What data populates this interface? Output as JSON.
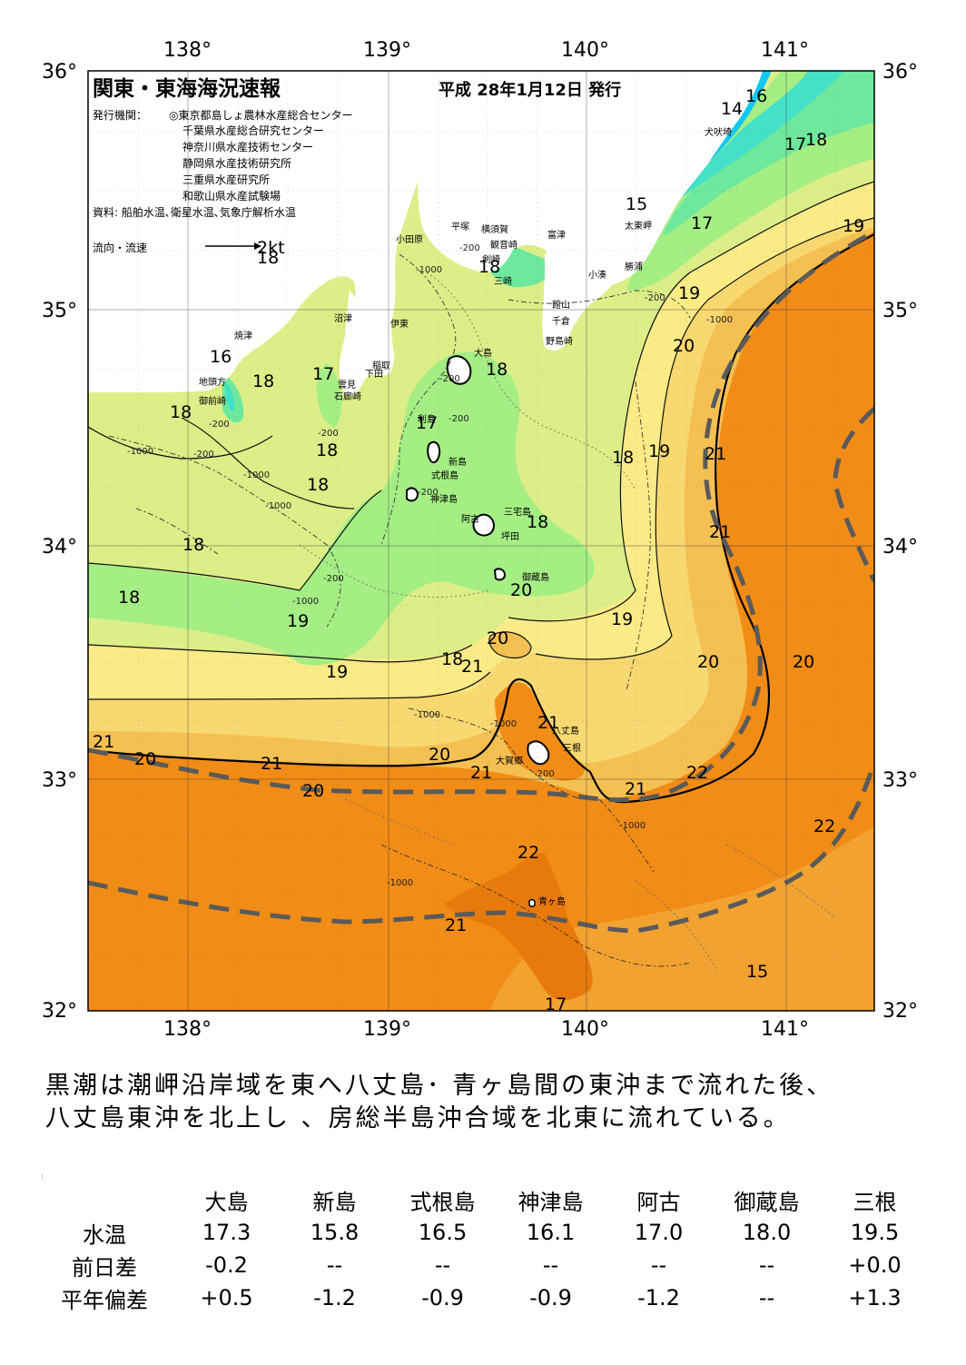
{
  "header": {
    "title": "関東・東海海況速報",
    "date": "平成 28年1月12日 発行",
    "publisher_label": "発行機関：",
    "publishers": [
      "◎東京都島しょ農林水産総合センター",
      "千葉県水産総合研究センター",
      "神奈川県水産技術センター",
      "静岡県水産技術研究所",
      "三重県水産研究所",
      "和歌山県水産試験場"
    ],
    "source": "資料: 船舶水温､衛星水温､気象庁解析水温",
    "legend_label": "流向・流速",
    "legend_speed": "2kt",
    "legend_overlap": "18"
  },
  "axes": {
    "lon_top": [
      "138°",
      "139°",
      "140°",
      "141°"
    ],
    "lon_bottom": [
      "138°",
      "139°",
      "140°",
      "141°"
    ],
    "lat_left": [
      "36°",
      "35°",
      "34°",
      "33°",
      "32°"
    ],
    "lat_right": [
      "36°",
      "35°",
      "34°",
      "33°",
      "32°"
    ]
  },
  "colors": {
    "land": "#ffffff",
    "t14": "#12c8f0",
    "t15": "#44e0c8",
    "t16": "#6ee89c",
    "t17": "#a4ee84",
    "t18": "#dcee88",
    "t19": "#faeb86",
    "t19_5": "#f8d870",
    "t20": "#f5c052",
    "t21": "#f2a230",
    "t21_5": "#f18c16",
    "t22": "#e87a0c",
    "kuroshio_axis": "#5a5a5a"
  },
  "isotherm_labels": [
    "16",
    "14",
    "17",
    "18",
    "15",
    "17",
    "19",
    "19",
    "20",
    "16",
    "18",
    "17",
    "18",
    "18",
    "17",
    "18",
    "18",
    "18",
    "18",
    "18",
    "18",
    "19",
    "19",
    "21",
    "21",
    "20",
    "20",
    "19",
    "19",
    "18",
    "21",
    "20",
    "20",
    "21",
    "20",
    "21",
    "20",
    "21",
    "20",
    "21",
    "21",
    "22",
    "22",
    "22",
    "21",
    "17",
    "15",
    "18"
  ],
  "place_labels": [
    "犬吠埼",
    "太東岬",
    "勝浦",
    "小湊",
    "館山",
    "千倉",
    "野島崎",
    "富津",
    "横須賀",
    "観音崎",
    "平塚",
    "剣崎",
    "三崎",
    "小田原",
    "伊東",
    "沼津",
    "焼津",
    "地頭方",
    "御前崎",
    "稲取",
    "下田",
    "雲見",
    "石廊崎",
    "大島",
    "利島",
    "新島",
    "式根島",
    "神津島",
    "三宅島",
    "阿古",
    "坪田",
    "御蔵島",
    "八丈島",
    "三根",
    "大賀郷",
    "青ヶ島"
  ],
  "depth_labels": [
    "-200",
    "-1000",
    "-200",
    "-200",
    "-1000",
    "-200",
    "-200",
    "-200",
    "-1000",
    "-200",
    "-1000",
    "-200",
    "-1000",
    "-200",
    "-1000",
    "-1000",
    "-1000",
    "-1000",
    "-1000",
    "-200"
  ],
  "summary": {
    "line1": "黒潮は潮岬沿岸域を東へ八丈島･ 青ヶ島間の東沖まで流れた後、",
    "line2": "八丈島東沖を北上し 、房総半島沖合域を北東に流れている。"
  },
  "table": {
    "columns": [
      "大島",
      "新島",
      "式根島",
      "神津島",
      "阿古",
      "御蔵島",
      "三根"
    ],
    "rows": [
      {
        "label": "水温",
        "values": [
          "17.3",
          "15.8",
          "16.5",
          "16.1",
          "17.0",
          "18.0",
          "19.5"
        ]
      },
      {
        "label": "前日差",
        "values": [
          "-0.2",
          "--",
          "--",
          "--",
          "--",
          "--",
          "+0.0"
        ]
      },
      {
        "label": "平年偏差",
        "values": [
          "+0.5",
          "-1.2",
          "-0.9",
          "-0.9",
          "-1.2",
          "--",
          "+1.3"
        ]
      }
    ]
  }
}
